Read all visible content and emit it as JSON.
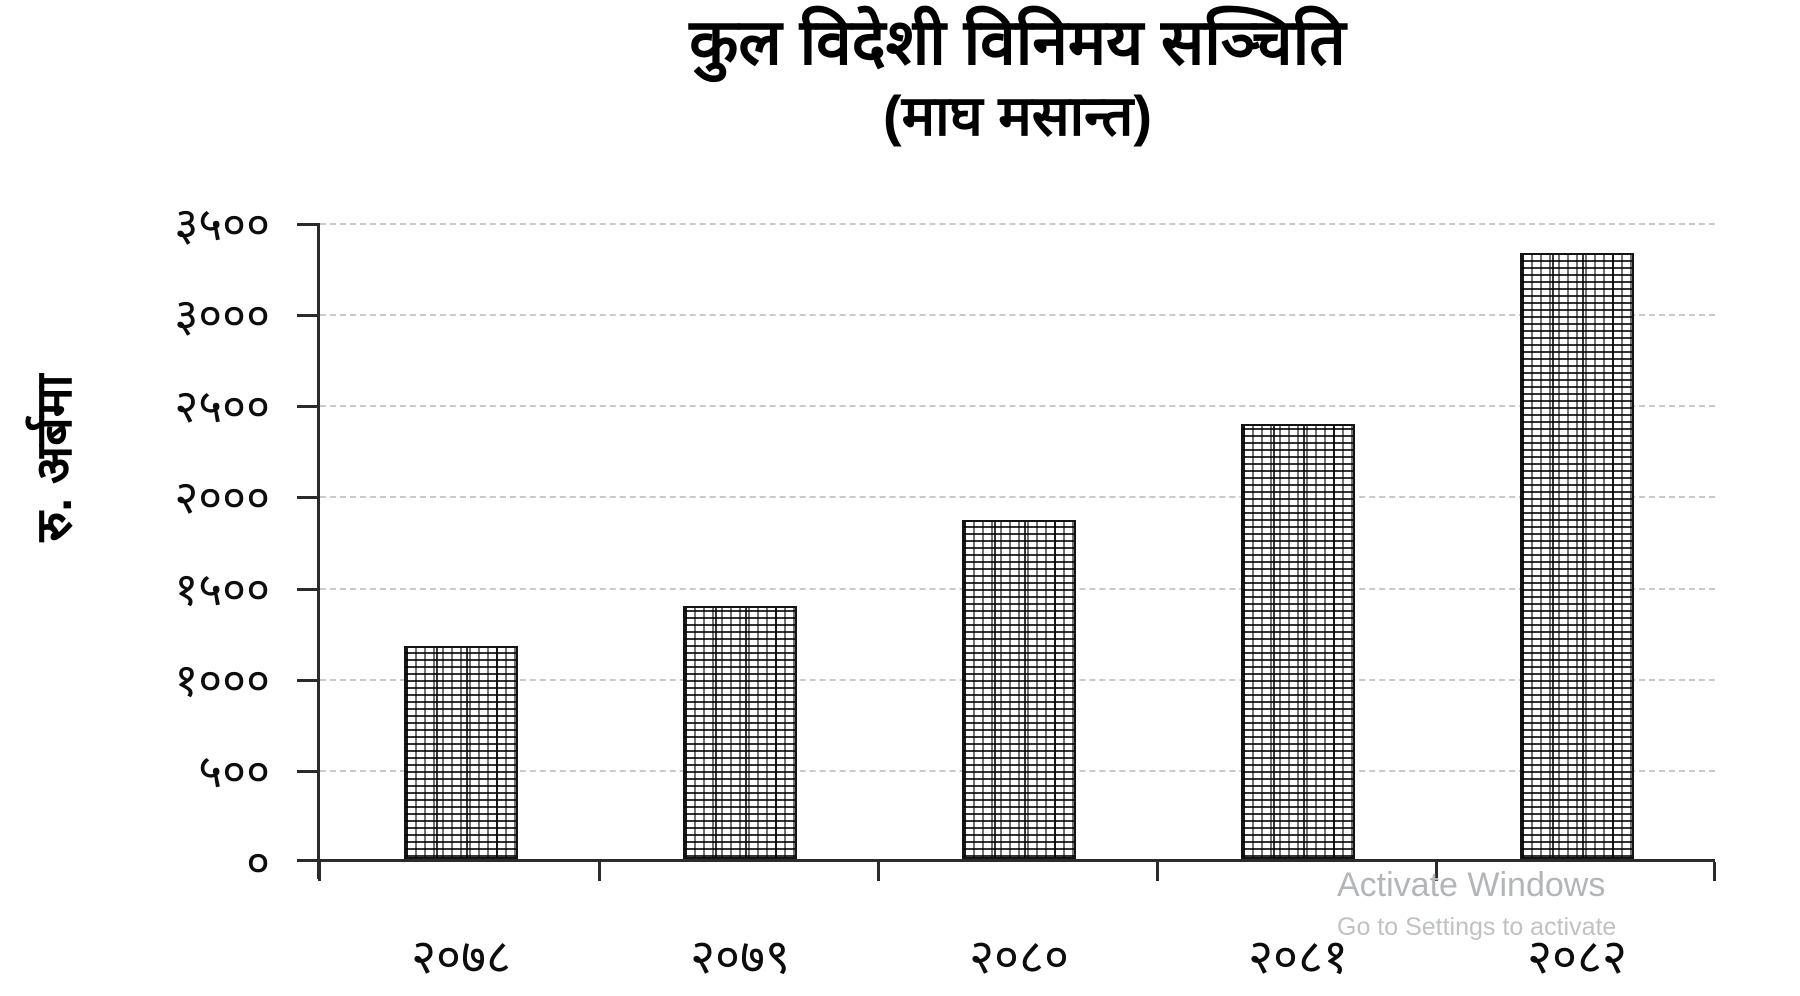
{
  "title": {
    "line1": "कुल विदेशी विनिमय सञ्चिति",
    "line2": "(माघ मसान्त)"
  },
  "y_axis": {
    "label": "रु. अर्बमा",
    "ticks": [
      "३५००",
      "३०००",
      "२५००",
      "२०००",
      "१५००",
      "१०००",
      "५००",
      "०"
    ]
  },
  "x_axis": {
    "labels": [
      "२०७८",
      "२०७९",
      "२०८०",
      "२०८१",
      "२०८२"
    ]
  },
  "watermark": {
    "line1": "Activate Windows",
    "line2": "Go to Settings to activate"
  },
  "colors": {
    "text": "#000000",
    "gridline": "#c9c9c9",
    "axis": "#2b2b2b",
    "bar_pattern": "#111111",
    "watermark": "#b3b6b9"
  },
  "chart_data": {
    "type": "bar",
    "title": "कुल विदेशी विनिमय सञ्चिति (माघ मसान्त)",
    "categories": [
      "२०७८",
      "२०७९",
      "२०८०",
      "२०८१",
      "२०८२"
    ],
    "categories_latin": [
      2078,
      2079,
      2080,
      2081,
      2082
    ],
    "values": [
      1170,
      1390,
      1860,
      2385,
      3325
    ],
    "xlabel": "",
    "ylabel": "रु. अर्बमा",
    "ylim": [
      0,
      3500
    ],
    "ytick_step": 500,
    "ytick_labels": [
      "०",
      "५००",
      "१०००",
      "१५००",
      "२०००",
      "२५००",
      "३०००",
      "३५००"
    ],
    "grid": "horizontal dashed gridlines on",
    "legend": "none",
    "bar_style": "white bars with black crosshatch pattern fill, dark outline"
  }
}
